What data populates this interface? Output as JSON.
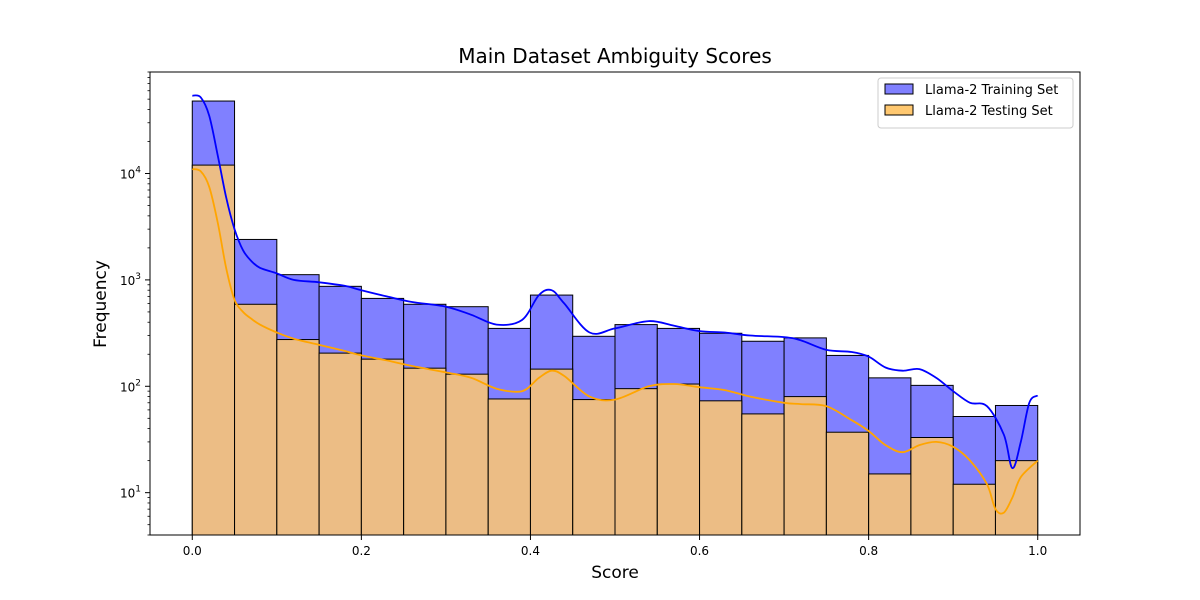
{
  "chart_data": {
    "type": "histogram",
    "title": "Main Dataset Ambiguity Scores",
    "xlabel": "Score",
    "ylabel": "Frequency",
    "x_scale": "linear",
    "y_scale": "log",
    "xlim": [
      -0.05,
      1.05
    ],
    "ylim": [
      4,
      90000
    ],
    "grid": false,
    "legend_position": "top-right",
    "bin_edges": [
      0.0,
      0.05,
      0.1,
      0.15,
      0.2,
      0.25,
      0.3,
      0.35,
      0.4,
      0.45,
      0.5,
      0.55,
      0.6,
      0.65,
      0.7,
      0.75,
      0.8,
      0.85,
      0.9,
      0.95,
      1.0
    ],
    "x_ticks": [
      "0.0",
      "0.2",
      "0.4",
      "0.6",
      "0.8",
      "1.0"
    ],
    "x_tick_values": [
      0.0,
      0.2,
      0.4,
      0.6,
      0.8,
      1.0
    ],
    "y_ticks": [
      {
        "value": 10,
        "base": "10",
        "exp": "1"
      },
      {
        "value": 100,
        "base": "10",
        "exp": "2"
      },
      {
        "value": 1000,
        "base": "10",
        "exp": "3"
      },
      {
        "value": 10000,
        "base": "10",
        "exp": "4"
      }
    ],
    "series": [
      {
        "name": "Llama-2 Training Set",
        "color": "#0000ff",
        "fill": "#8080ff",
        "counts": [
          48000,
          2400,
          1120,
          870,
          670,
          590,
          560,
          350,
          720,
          295,
          380,
          350,
          315,
          265,
          285,
          195,
          120,
          102,
          52,
          66
        ],
        "kde_x": [
          0.0,
          0.01,
          0.02,
          0.03,
          0.04,
          0.05,
          0.06,
          0.07,
          0.08,
          0.1,
          0.12,
          0.15,
          0.18,
          0.2,
          0.23,
          0.26,
          0.3,
          0.33,
          0.36,
          0.39,
          0.41,
          0.425,
          0.44,
          0.47,
          0.5,
          0.54,
          0.57,
          0.6,
          0.63,
          0.66,
          0.7,
          0.72,
          0.75,
          0.78,
          0.8,
          0.82,
          0.84,
          0.86,
          0.88,
          0.9,
          0.92,
          0.94,
          0.96,
          0.97,
          0.98,
          0.99,
          1.0
        ],
        "kde_y": [
          54000,
          52000,
          35000,
          15000,
          6000,
          3000,
          1900,
          1500,
          1300,
          1150,
          1000,
          950,
          880,
          800,
          700,
          620,
          560,
          470,
          380,
          420,
          720,
          800,
          600,
          320,
          350,
          410,
          370,
          330,
          320,
          300,
          290,
          270,
          220,
          210,
          190,
          150,
          140,
          145,
          120,
          90,
          70,
          65,
          35,
          17,
          30,
          70,
          82
        ]
      },
      {
        "name": "Llama-2 Testing Set",
        "color": "#ffa500",
        "fill": "#ffc870",
        "counts": [
          12000,
          590,
          275,
          205,
          180,
          148,
          130,
          76,
          145,
          75,
          95,
          105,
          73,
          55,
          80,
          37,
          15,
          33,
          12,
          20
        ],
        "kde_x": [
          0.0,
          0.01,
          0.02,
          0.03,
          0.04,
          0.05,
          0.06,
          0.07,
          0.08,
          0.1,
          0.12,
          0.15,
          0.18,
          0.2,
          0.23,
          0.26,
          0.3,
          0.33,
          0.36,
          0.39,
          0.41,
          0.425,
          0.44,
          0.47,
          0.5,
          0.54,
          0.57,
          0.6,
          0.63,
          0.66,
          0.7,
          0.72,
          0.75,
          0.78,
          0.8,
          0.82,
          0.84,
          0.86,
          0.88,
          0.9,
          0.92,
          0.94,
          0.95,
          0.96,
          0.97,
          0.98,
          1.0
        ],
        "kde_y": [
          11000,
          10500,
          7500,
          3500,
          1300,
          650,
          500,
          430,
          380,
          320,
          280,
          245,
          215,
          195,
          175,
          155,
          135,
          120,
          95,
          90,
          120,
          140,
          125,
          80,
          75,
          100,
          105,
          98,
          92,
          80,
          70,
          68,
          65,
          48,
          38,
          28,
          24,
          28,
          30,
          27,
          20,
          12,
          7,
          6.5,
          9,
          14,
          20
        ]
      }
    ]
  }
}
